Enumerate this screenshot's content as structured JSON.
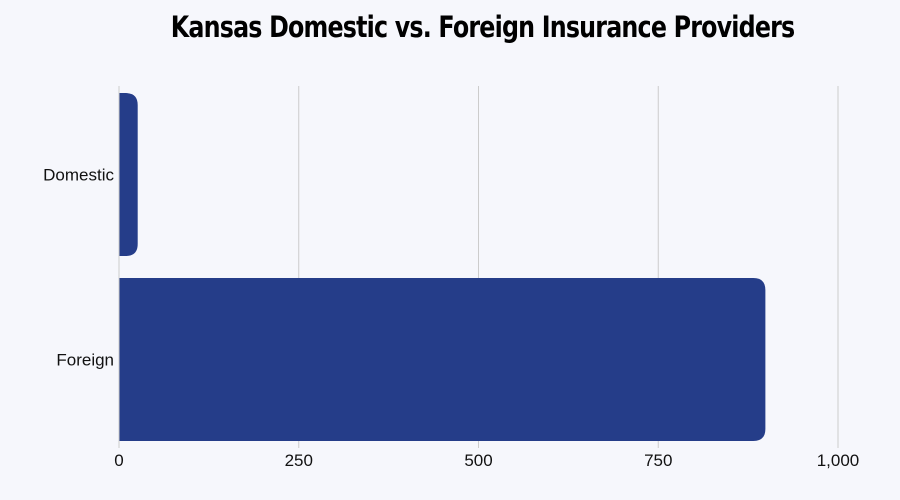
{
  "chart_data": {
    "type": "bar",
    "orientation": "horizontal",
    "title": "Kansas Domestic vs. Foreign Insurance Providers",
    "categories": [
      "Domestic",
      "Foreign"
    ],
    "values": [
      26,
      899
    ],
    "xlim": [
      0,
      1000
    ],
    "x_ticks": [
      "0",
      "250",
      "500",
      "750",
      "1,000"
    ],
    "x_tick_values": [
      0,
      250,
      500,
      750,
      1000
    ],
    "grid": "vertical",
    "colors": {
      "bar": "#253d89",
      "grid": "#cccccc",
      "background": "#f6f7fc"
    }
  }
}
